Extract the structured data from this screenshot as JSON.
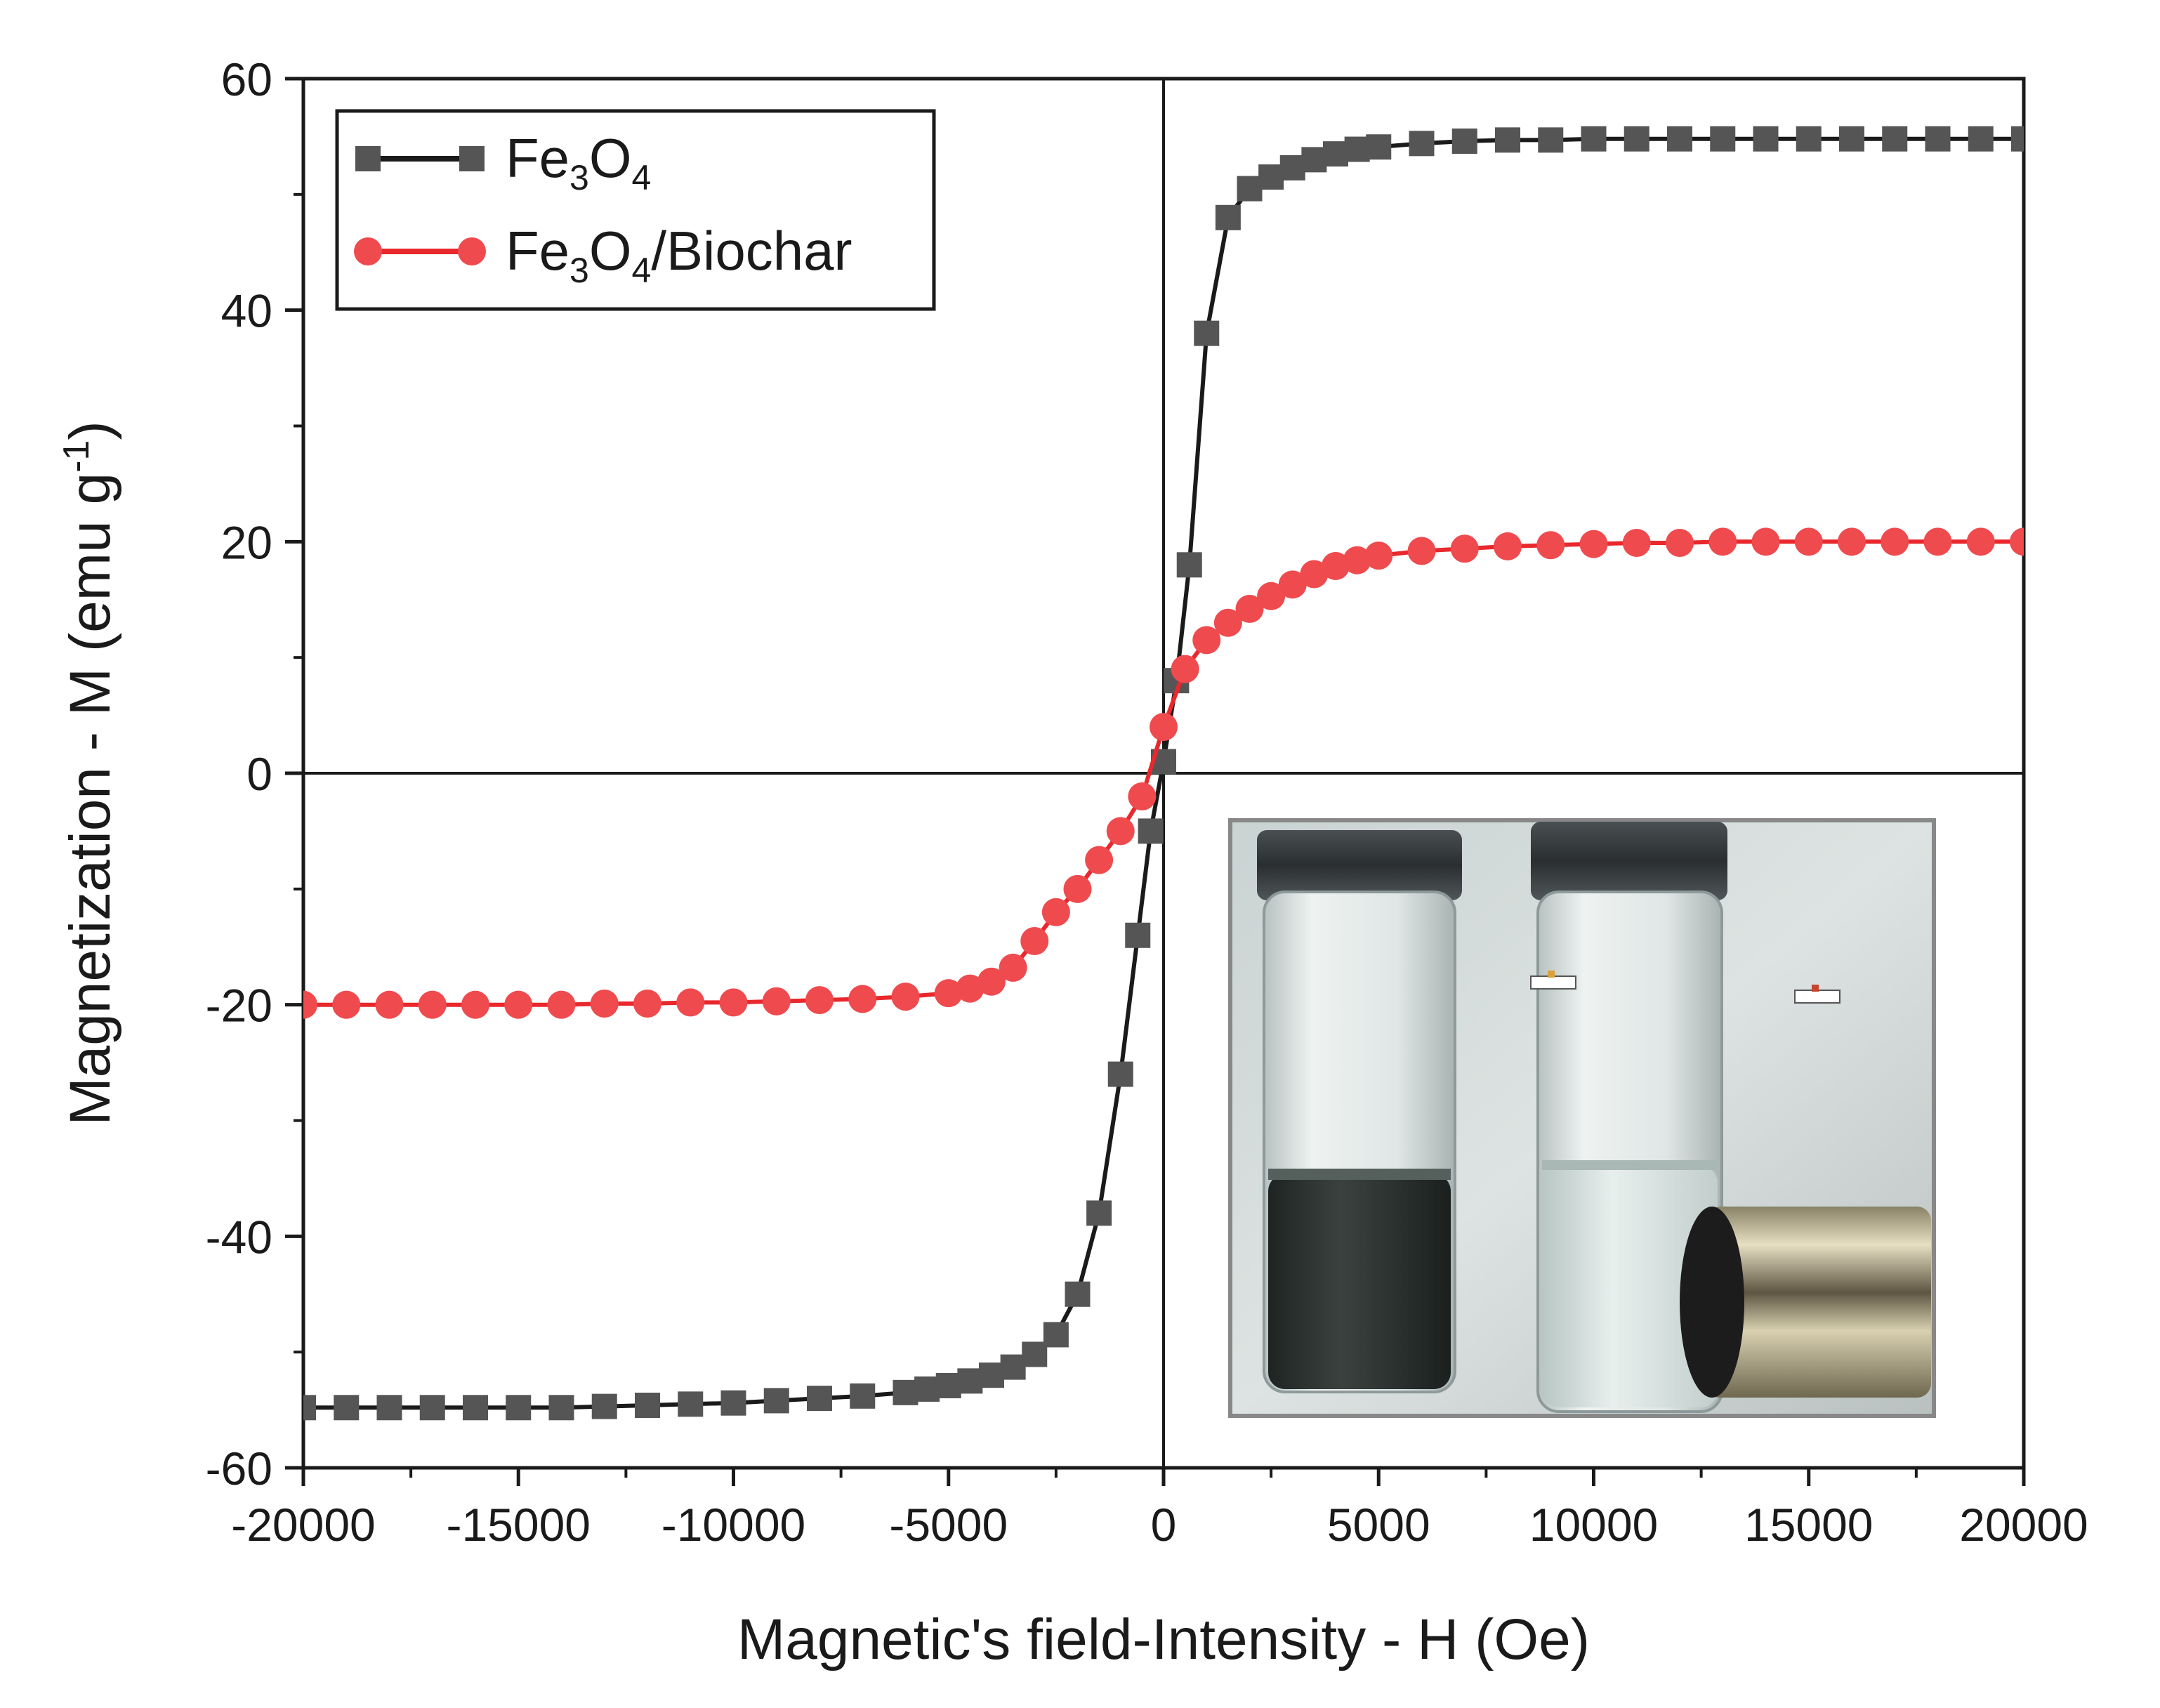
{
  "chart_data": {
    "type": "scatter",
    "title": "",
    "xlabel": "Magnetic's field-Intensity - H (Oe)",
    "ylabel": "Magnetization - M (emu g-1)",
    "ylabel_parts": {
      "main": "Magnetization - M (emu g",
      "sup": "-1",
      "close": ")"
    },
    "xlim": [
      -20000,
      20000
    ],
    "ylim": [
      -60,
      60
    ],
    "xticks": [
      -20000,
      -15000,
      -10000,
      -5000,
      0,
      5000,
      10000,
      15000,
      20000
    ],
    "xtick_labels": [
      "-20000",
      "-15000",
      "-10000",
      "-5000",
      "0",
      "5000",
      "10000",
      "15000",
      "20000"
    ],
    "yticks": [
      -60,
      -40,
      -20,
      0,
      20,
      40,
      60
    ],
    "ytick_labels": [
      "-60",
      "-40",
      "-20",
      "0",
      "20",
      "40",
      "60"
    ],
    "grid": false,
    "legend_position": "top-left",
    "reference_lines": {
      "x": 0,
      "y": 0
    },
    "series": [
      {
        "name": "Fe3O4",
        "legend_parts": [
          {
            "t": "Fe",
            "sub": false
          },
          {
            "t": "3",
            "sub": true
          },
          {
            "t": "O",
            "sub": false
          },
          {
            "t": "4",
            "sub": true
          }
        ],
        "color": "#1a1a1a",
        "marker_color": "#555555",
        "marker": "square",
        "x": [
          -20000,
          -19000,
          -18000,
          -17000,
          -16000,
          -15000,
          -14000,
          -13000,
          -12000,
          -11000,
          -10000,
          -9000,
          -8000,
          -7000,
          -6000,
          -5500,
          -5000,
          -4500,
          -4000,
          -3500,
          -3000,
          -2500,
          -2000,
          -1500,
          -1000,
          -600,
          -300,
          0,
          300,
          600,
          1000,
          1500,
          2000,
          2500,
          3000,
          3500,
          4000,
          4500,
          5000,
          6000,
          7000,
          8000,
          9000,
          10000,
          11000,
          12000,
          13000,
          14000,
          15000,
          16000,
          17000,
          18000,
          19000,
          20000
        ],
        "y": [
          -54.8,
          -54.8,
          -54.8,
          -54.8,
          -54.8,
          -54.8,
          -54.8,
          -54.7,
          -54.6,
          -54.5,
          -54.4,
          -54.2,
          -54.0,
          -53.8,
          -53.5,
          -53.2,
          -52.9,
          -52.5,
          -52.0,
          -51.3,
          -50.2,
          -48.5,
          -45.0,
          -38.0,
          -26.0,
          -14.0,
          -5.0,
          1.0,
          8.0,
          18.0,
          38.0,
          48.0,
          50.5,
          51.5,
          52.3,
          53.0,
          53.5,
          53.9,
          54.1,
          54.4,
          54.6,
          54.7,
          54.7,
          54.8,
          54.8,
          54.8,
          54.8,
          54.8,
          54.8,
          54.8,
          54.8,
          54.8,
          54.8,
          54.8
        ]
      },
      {
        "name": "Fe3O4/Biochar",
        "legend_parts": [
          {
            "t": "Fe",
            "sub": false
          },
          {
            "t": "3",
            "sub": true
          },
          {
            "t": "O",
            "sub": false
          },
          {
            "t": "4",
            "sub": true
          },
          {
            "t": "/Biochar",
            "sub": false
          }
        ],
        "color": "#e8282d",
        "marker_color": "#ef4a4e",
        "marker": "circle",
        "x": [
          -20000,
          -19000,
          -18000,
          -17000,
          -16000,
          -15000,
          -14000,
          -13000,
          -12000,
          -11000,
          -10000,
          -9000,
          -8000,
          -7000,
          -6000,
          -5000,
          -4500,
          -4000,
          -3500,
          -3000,
          -2500,
          -2000,
          -1500,
          -1000,
          -500,
          0,
          500,
          1000,
          1500,
          2000,
          2500,
          3000,
          3500,
          4000,
          4500,
          5000,
          6000,
          7000,
          8000,
          9000,
          10000,
          11000,
          12000,
          13000,
          14000,
          15000,
          16000,
          17000,
          18000,
          19000,
          20000
        ],
        "y": [
          -20.0,
          -20.0,
          -20.0,
          -20.0,
          -20.0,
          -20.0,
          -20.0,
          -19.9,
          -19.9,
          -19.8,
          -19.8,
          -19.7,
          -19.6,
          -19.5,
          -19.3,
          -19.0,
          -18.6,
          -18.0,
          -16.8,
          -14.5,
          -12.0,
          -10.0,
          -7.5,
          -5.0,
          -2.0,
          4.0,
          9.0,
          11.5,
          13.0,
          14.2,
          15.3,
          16.3,
          17.2,
          17.9,
          18.4,
          18.8,
          19.2,
          19.4,
          19.6,
          19.7,
          19.8,
          19.9,
          19.9,
          20.0,
          20.0,
          20.0,
          20.0,
          20.0,
          20.0,
          20.0,
          20.0
        ]
      }
    ]
  },
  "inset_photo": {
    "description_icon": "vials-with-magnet-photo",
    "left_vial_liquid_color": "#2f3633",
    "right_vial_liquid_color": "#dfe8e6"
  }
}
